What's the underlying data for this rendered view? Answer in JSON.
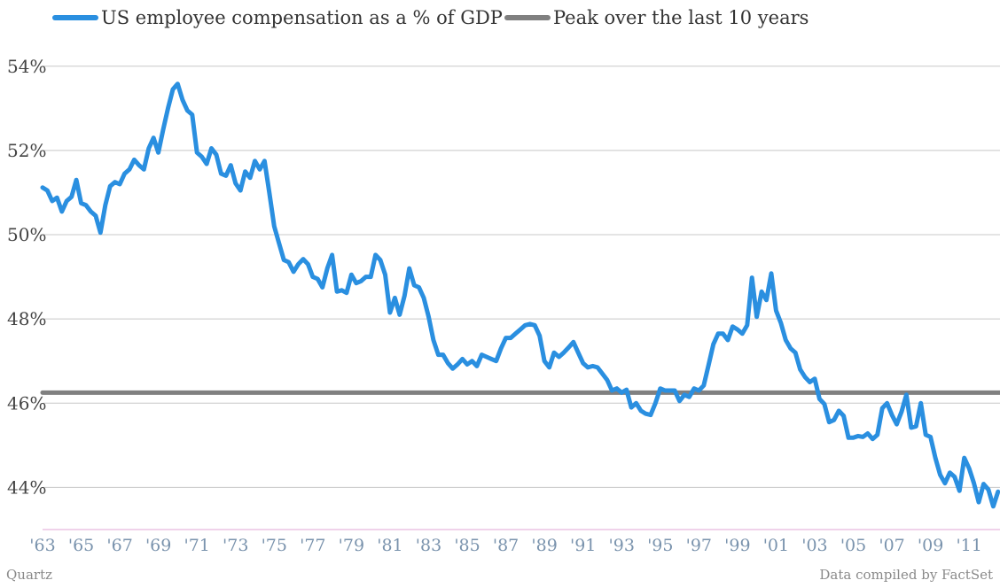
{
  "chart_data": {
    "type": "line",
    "title": "",
    "xlabel": "",
    "ylabel": "",
    "ylim": [
      43,
      54.3
    ],
    "xlim": [
      1963,
      2012.6
    ],
    "grid": true,
    "legend_position": "top-left",
    "yticks": [
      "54%",
      "52%",
      "50%",
      "48%",
      "46%",
      "44%"
    ],
    "ytick_values": [
      54,
      52,
      50,
      48,
      46,
      44
    ],
    "xticks": [
      "'63",
      "'65",
      "'67",
      "'69",
      "'71",
      "'73",
      "'75",
      "'77",
      "'79",
      "'81",
      "'83",
      "'85",
      "'87",
      "'89",
      "'91",
      "'93",
      "'95",
      "'97",
      "'99",
      "'01",
      "'03",
      "'05",
      "'07",
      "'09",
      "'11"
    ],
    "xtick_values": [
      1963,
      1965,
      1967,
      1969,
      1971,
      1973,
      1975,
      1977,
      1979,
      1981,
      1983,
      1985,
      1987,
      1989,
      1991,
      1993,
      1995,
      1997,
      1999,
      2001,
      2003,
      2005,
      2007,
      2009,
      2011
    ],
    "series": [
      {
        "name": "US employee compensation as a % of GDP",
        "color": "#2a8fe0",
        "points": [
          [
            1963.0,
            51.12
          ],
          [
            1963.25,
            51.05
          ],
          [
            1963.5,
            50.8
          ],
          [
            1963.75,
            50.88
          ],
          [
            1964.0,
            50.55
          ],
          [
            1964.25,
            50.8
          ],
          [
            1964.5,
            50.9
          ],
          [
            1964.75,
            51.3
          ],
          [
            1965.0,
            50.75
          ],
          [
            1965.25,
            50.7
          ],
          [
            1965.5,
            50.55
          ],
          [
            1965.75,
            50.45
          ],
          [
            1966.0,
            50.05
          ],
          [
            1966.25,
            50.7
          ],
          [
            1966.5,
            51.15
          ],
          [
            1966.75,
            51.25
          ],
          [
            1967.0,
            51.2
          ],
          [
            1967.25,
            51.45
          ],
          [
            1967.5,
            51.55
          ],
          [
            1967.75,
            51.78
          ],
          [
            1968.0,
            51.65
          ],
          [
            1968.25,
            51.55
          ],
          [
            1968.5,
            52.05
          ],
          [
            1968.75,
            52.3
          ],
          [
            1969.0,
            51.95
          ],
          [
            1969.25,
            52.5
          ],
          [
            1969.5,
            53.0
          ],
          [
            1969.75,
            53.45
          ],
          [
            1970.0,
            53.58
          ],
          [
            1970.25,
            53.2
          ],
          [
            1970.5,
            52.95
          ],
          [
            1970.75,
            52.85
          ],
          [
            1971.0,
            51.95
          ],
          [
            1971.25,
            51.85
          ],
          [
            1971.5,
            51.68
          ],
          [
            1971.75,
            52.05
          ],
          [
            1972.0,
            51.9
          ],
          [
            1972.25,
            51.45
          ],
          [
            1972.5,
            51.4
          ],
          [
            1972.75,
            51.65
          ],
          [
            1973.0,
            51.22
          ],
          [
            1973.25,
            51.05
          ],
          [
            1973.5,
            51.5
          ],
          [
            1973.75,
            51.35
          ],
          [
            1974.0,
            51.75
          ],
          [
            1974.25,
            51.55
          ],
          [
            1974.5,
            51.75
          ],
          [
            1974.75,
            51.0
          ],
          [
            1975.0,
            50.2
          ],
          [
            1975.25,
            49.8
          ],
          [
            1975.5,
            49.4
          ],
          [
            1975.75,
            49.35
          ],
          [
            1976.0,
            49.12
          ],
          [
            1976.25,
            49.3
          ],
          [
            1976.5,
            49.42
          ],
          [
            1976.75,
            49.3
          ],
          [
            1977.0,
            49.0
          ],
          [
            1977.25,
            48.95
          ],
          [
            1977.5,
            48.75
          ],
          [
            1977.75,
            49.2
          ],
          [
            1978.0,
            49.52
          ],
          [
            1978.25,
            48.65
          ],
          [
            1978.5,
            48.68
          ],
          [
            1978.75,
            48.62
          ],
          [
            1979.0,
            49.05
          ],
          [
            1979.25,
            48.85
          ],
          [
            1979.5,
            48.9
          ],
          [
            1979.75,
            49.0
          ],
          [
            1980.0,
            49.0
          ],
          [
            1980.25,
            49.52
          ],
          [
            1980.5,
            49.4
          ],
          [
            1980.75,
            49.05
          ],
          [
            1981.0,
            48.15
          ],
          [
            1981.25,
            48.5
          ],
          [
            1981.5,
            48.1
          ],
          [
            1981.75,
            48.55
          ],
          [
            1982.0,
            49.2
          ],
          [
            1982.25,
            48.8
          ],
          [
            1982.5,
            48.75
          ],
          [
            1982.75,
            48.5
          ],
          [
            1983.0,
            48.05
          ],
          [
            1983.25,
            47.5
          ],
          [
            1983.5,
            47.15
          ],
          [
            1983.75,
            47.15
          ],
          [
            1984.0,
            46.95
          ],
          [
            1984.25,
            46.82
          ],
          [
            1984.5,
            46.92
          ],
          [
            1984.75,
            47.05
          ],
          [
            1985.0,
            46.92
          ],
          [
            1985.25,
            47.0
          ],
          [
            1985.5,
            46.88
          ],
          [
            1985.75,
            47.15
          ],
          [
            1986.0,
            47.1
          ],
          [
            1986.25,
            47.05
          ],
          [
            1986.5,
            47.0
          ],
          [
            1986.75,
            47.3
          ],
          [
            1987.0,
            47.55
          ],
          [
            1987.25,
            47.55
          ],
          [
            1987.5,
            47.65
          ],
          [
            1987.75,
            47.75
          ],
          [
            1988.0,
            47.85
          ],
          [
            1988.25,
            47.88
          ],
          [
            1988.5,
            47.85
          ],
          [
            1988.75,
            47.6
          ],
          [
            1989.0,
            47.0
          ],
          [
            1989.25,
            46.85
          ],
          [
            1989.5,
            47.2
          ],
          [
            1989.75,
            47.1
          ],
          [
            1990.0,
            47.2
          ],
          [
            1990.25,
            47.32
          ],
          [
            1990.5,
            47.45
          ],
          [
            1990.75,
            47.2
          ],
          [
            1991.0,
            46.95
          ],
          [
            1991.25,
            46.85
          ],
          [
            1991.5,
            46.88
          ],
          [
            1991.75,
            46.85
          ],
          [
            1992.0,
            46.7
          ],
          [
            1992.25,
            46.55
          ],
          [
            1992.5,
            46.3
          ],
          [
            1992.75,
            46.35
          ],
          [
            1993.0,
            46.25
          ],
          [
            1993.25,
            46.32
          ],
          [
            1993.5,
            45.9
          ],
          [
            1993.75,
            46.0
          ],
          [
            1994.0,
            45.82
          ],
          [
            1994.25,
            45.75
          ],
          [
            1994.5,
            45.72
          ],
          [
            1994.75,
            46.0
          ],
          [
            1995.0,
            46.35
          ],
          [
            1995.25,
            46.3
          ],
          [
            1995.5,
            46.3
          ],
          [
            1995.75,
            46.3
          ],
          [
            1996.0,
            46.05
          ],
          [
            1996.25,
            46.2
          ],
          [
            1996.5,
            46.15
          ],
          [
            1996.75,
            46.35
          ],
          [
            1997.0,
            46.3
          ],
          [
            1997.25,
            46.42
          ],
          [
            1997.5,
            46.9
          ],
          [
            1997.75,
            47.4
          ],
          [
            1998.0,
            47.65
          ],
          [
            1998.25,
            47.65
          ],
          [
            1998.5,
            47.5
          ],
          [
            1998.75,
            47.82
          ],
          [
            1999.0,
            47.75
          ],
          [
            1999.25,
            47.65
          ],
          [
            1999.5,
            47.85
          ],
          [
            1999.75,
            48.98
          ],
          [
            2000.0,
            48.05
          ],
          [
            2000.25,
            48.65
          ],
          [
            2000.5,
            48.45
          ],
          [
            2000.75,
            49.08
          ],
          [
            2001.0,
            48.2
          ],
          [
            2001.25,
            47.9
          ],
          [
            2001.5,
            47.5
          ],
          [
            2001.75,
            47.3
          ],
          [
            2002.0,
            47.2
          ],
          [
            2002.25,
            46.8
          ],
          [
            2002.5,
            46.62
          ],
          [
            2002.75,
            46.5
          ],
          [
            2003.0,
            46.58
          ],
          [
            2003.25,
            46.1
          ],
          [
            2003.5,
            45.98
          ],
          [
            2003.75,
            45.55
          ],
          [
            2004.0,
            45.6
          ],
          [
            2004.25,
            45.82
          ],
          [
            2004.5,
            45.7
          ],
          [
            2004.75,
            45.18
          ],
          [
            2005.0,
            45.18
          ],
          [
            2005.25,
            45.22
          ],
          [
            2005.5,
            45.2
          ],
          [
            2005.75,
            45.28
          ],
          [
            2006.0,
            45.15
          ],
          [
            2006.25,
            45.25
          ],
          [
            2006.5,
            45.88
          ],
          [
            2006.75,
            46.0
          ],
          [
            2007.0,
            45.72
          ],
          [
            2007.25,
            45.5
          ],
          [
            2007.5,
            45.8
          ],
          [
            2007.75,
            46.2
          ],
          [
            2008.0,
            45.42
          ],
          [
            2008.25,
            45.45
          ],
          [
            2008.5,
            46.0
          ],
          [
            2008.75,
            45.25
          ],
          [
            2009.0,
            45.2
          ],
          [
            2009.25,
            44.7
          ],
          [
            2009.5,
            44.3
          ],
          [
            2009.75,
            44.1
          ],
          [
            2010.0,
            44.35
          ],
          [
            2010.25,
            44.25
          ],
          [
            2010.5,
            43.92
          ],
          [
            2010.75,
            44.7
          ],
          [
            2011.0,
            44.45
          ],
          [
            2011.25,
            44.1
          ],
          [
            2011.5,
            43.65
          ],
          [
            2011.75,
            44.08
          ],
          [
            2012.0,
            43.95
          ],
          [
            2012.25,
            43.55
          ],
          [
            2012.5,
            43.9
          ]
        ]
      },
      {
        "name": "Peak over the last 10 years",
        "color": "#808080",
        "points": [
          [
            1963.0,
            46.25
          ],
          [
            2012.6,
            46.25
          ]
        ]
      }
    ]
  },
  "footer": {
    "source_left": "Quartz",
    "source_right": "Data compiled by FactSet"
  }
}
